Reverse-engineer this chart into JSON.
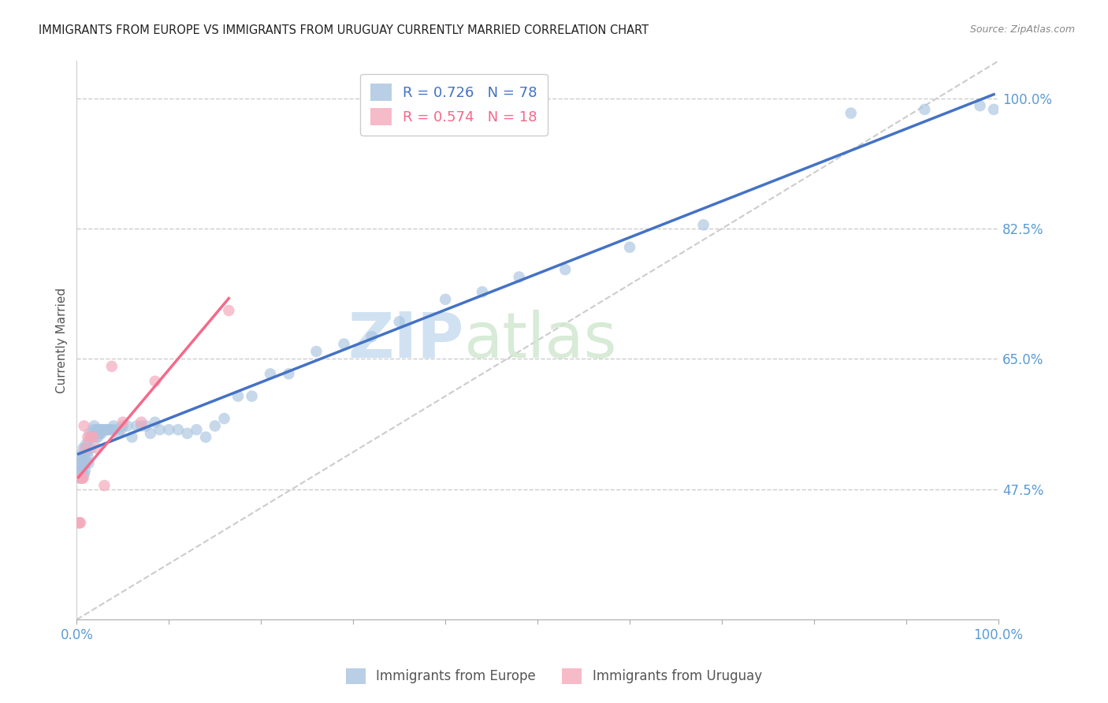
{
  "title": "IMMIGRANTS FROM EUROPE VS IMMIGRANTS FROM URUGUAY CURRENTLY MARRIED CORRELATION CHART",
  "source": "Source: ZipAtlas.com",
  "ylabel": "Currently Married",
  "xlim": [
    0,
    1.0
  ],
  "ylim": [
    0.3,
    1.05
  ],
  "yticks": [
    0.475,
    0.65,
    0.825,
    1.0
  ],
  "ytick_labels": [
    "47.5%",
    "65.0%",
    "82.5%",
    "100.0%"
  ],
  "xtick_positions": [
    0.0,
    0.1,
    0.2,
    0.3,
    0.4,
    0.5,
    0.6,
    0.7,
    0.8,
    0.9,
    1.0
  ],
  "xtick_labels": [
    "0.0%",
    "",
    "",
    "",
    "",
    "",
    "",
    "",
    "",
    "",
    "100.0%"
  ],
  "europe_R": 0.726,
  "europe_N": 78,
  "uruguay_R": 0.574,
  "uruguay_N": 18,
  "europe_color": "#A8C4E0",
  "uruguay_color": "#F4AABC",
  "europe_line_color": "#4472C4",
  "uruguay_line_color": "#F4698A",
  "europe_scatter_x": [
    0.002,
    0.003,
    0.003,
    0.004,
    0.005,
    0.005,
    0.006,
    0.006,
    0.007,
    0.007,
    0.008,
    0.008,
    0.009,
    0.009,
    0.01,
    0.01,
    0.011,
    0.012,
    0.013,
    0.013,
    0.014,
    0.015,
    0.016,
    0.017,
    0.018,
    0.019,
    0.02,
    0.021,
    0.022,
    0.023,
    0.024,
    0.025,
    0.026,
    0.027,
    0.028,
    0.03,
    0.032,
    0.034,
    0.036,
    0.038,
    0.04,
    0.042,
    0.045,
    0.048,
    0.05,
    0.055,
    0.06,
    0.065,
    0.07,
    0.075,
    0.08,
    0.085,
    0.09,
    0.1,
    0.11,
    0.12,
    0.13,
    0.14,
    0.15,
    0.16,
    0.175,
    0.19,
    0.21,
    0.23,
    0.26,
    0.29,
    0.32,
    0.35,
    0.4,
    0.44,
    0.48,
    0.53,
    0.6,
    0.68,
    0.84,
    0.92,
    0.98,
    0.995
  ],
  "europe_scatter_y": [
    0.51,
    0.52,
    0.49,
    0.5,
    0.505,
    0.49,
    0.515,
    0.5,
    0.51,
    0.53,
    0.495,
    0.52,
    0.53,
    0.5,
    0.535,
    0.51,
    0.525,
    0.52,
    0.54,
    0.51,
    0.55,
    0.53,
    0.545,
    0.545,
    0.555,
    0.56,
    0.55,
    0.545,
    0.555,
    0.545,
    0.555,
    0.55,
    0.555,
    0.55,
    0.555,
    0.555,
    0.555,
    0.555,
    0.555,
    0.555,
    0.56,
    0.555,
    0.55,
    0.555,
    0.56,
    0.56,
    0.545,
    0.56,
    0.56,
    0.56,
    0.55,
    0.565,
    0.555,
    0.555,
    0.555,
    0.55,
    0.555,
    0.545,
    0.56,
    0.57,
    0.6,
    0.6,
    0.63,
    0.63,
    0.66,
    0.67,
    0.68,
    0.7,
    0.73,
    0.74,
    0.76,
    0.77,
    0.8,
    0.83,
    0.98,
    0.985,
    0.99,
    0.985
  ],
  "uruguay_scatter_x": [
    0.002,
    0.003,
    0.004,
    0.005,
    0.006,
    0.007,
    0.008,
    0.01,
    0.012,
    0.015,
    0.018,
    0.022,
    0.03,
    0.038,
    0.05,
    0.07,
    0.085,
    0.165
  ],
  "uruguay_scatter_y": [
    0.43,
    0.43,
    0.43,
    0.49,
    0.49,
    0.49,
    0.56,
    0.53,
    0.545,
    0.545,
    0.545,
    0.53,
    0.48,
    0.64,
    0.565,
    0.565,
    0.62,
    0.715
  ],
  "background_color": "#FFFFFF",
  "grid_color": "#CCCCCC",
  "title_fontsize": 10.5,
  "tick_label_color": "#5B9BD5",
  "watermark_zip": "ZIP",
  "watermark_atlas": "atlas",
  "legend_europe_label": "Immigrants from Europe",
  "legend_uruguay_label": "Immigrants from Uruguay"
}
